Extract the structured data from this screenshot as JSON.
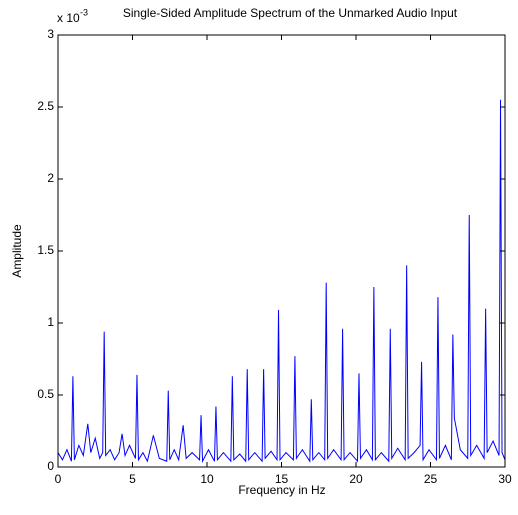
{
  "chart_data": {
    "type": "line",
    "title": "Single-Sided Amplitude Spectrum of the Unmarked Audio Input",
    "y_multiplier": "x 10",
    "y_multiplier_exponent": "-3",
    "xlabel": "Frequency in Hz",
    "ylabel": "Amplitude",
    "x": [
      0,
      0.3,
      0.6,
      0.9,
      1.0,
      1.1,
      1.4,
      1.7,
      2.0,
      2.2,
      2.5,
      2.8,
      3.0,
      3.1,
      3.2,
      3.5,
      3.8,
      4.1,
      4.3,
      4.5,
      4.8,
      5.2,
      5.3,
      5.4,
      5.7,
      6.0,
      6.4,
      6.8,
      7.3,
      7.4,
      7.5,
      7.8,
      8.1,
      8.4,
      8.6,
      9.0,
      9.5,
      9.6,
      9.7,
      10.1,
      10.5,
      10.6,
      10.7,
      11.1,
      11.6,
      11.7,
      11.8,
      12.2,
      12.6,
      12.7,
      12.8,
      13.2,
      13.7,
      13.8,
      13.9,
      14.3,
      14.7,
      14.8,
      14.9,
      15.3,
      15.8,
      15.9,
      16.0,
      16.4,
      16.9,
      17.0,
      17.1,
      17.5,
      17.9,
      18.0,
      18.1,
      18.5,
      19.0,
      19.1,
      19.2,
      19.6,
      20.1,
      20.2,
      20.3,
      20.7,
      21.1,
      21.2,
      21.3,
      21.7,
      22.2,
      22.3,
      22.4,
      22.8,
      23.3,
      23.4,
      23.5,
      23.9,
      24.3,
      24.4,
      24.5,
      24.9,
      25.4,
      25.5,
      25.6,
      26.0,
      26.4,
      26.5,
      26.6,
      27.0,
      27.5,
      27.6,
      27.7,
      28.1,
      28.6,
      28.7,
      28.8,
      29.2,
      29.6,
      29.7,
      29.8,
      30
    ],
    "series": [
      {
        "name": "Amplitude",
        "color": "#0000ff",
        "values": [
          0.1,
          0.05,
          0.12,
          0.04,
          0.63,
          0.05,
          0.15,
          0.08,
          0.3,
          0.1,
          0.2,
          0.06,
          0.1,
          0.94,
          0.08,
          0.12,
          0.05,
          0.1,
          0.23,
          0.08,
          0.15,
          0.06,
          0.64,
          0.05,
          0.1,
          0.04,
          0.22,
          0.06,
          0.04,
          0.53,
          0.05,
          0.12,
          0.05,
          0.29,
          0.06,
          0.1,
          0.05,
          0.36,
          0.04,
          0.12,
          0.04,
          0.42,
          0.05,
          0.1,
          0.04,
          0.63,
          0.05,
          0.09,
          0.04,
          0.68,
          0.05,
          0.1,
          0.04,
          0.68,
          0.06,
          0.11,
          0.05,
          1.09,
          0.05,
          0.1,
          0.05,
          0.77,
          0.06,
          0.12,
          0.04,
          0.47,
          0.05,
          0.1,
          0.05,
          1.28,
          0.06,
          0.12,
          0.05,
          0.96,
          0.05,
          0.1,
          0.04,
          0.65,
          0.06,
          0.12,
          0.05,
          1.25,
          0.05,
          0.1,
          0.04,
          0.96,
          0.06,
          0.13,
          0.05,
          1.4,
          0.06,
          0.1,
          0.15,
          0.73,
          0.05,
          0.12,
          0.05,
          1.18,
          0.06,
          0.15,
          0.05,
          0.92,
          0.34,
          0.12,
          0.06,
          1.75,
          0.08,
          0.15,
          0.06,
          1.1,
          0.1,
          0.18,
          0.08,
          2.55,
          0.1,
          0.05
        ]
      }
    ],
    "xlim": [
      0,
      30
    ],
    "ylim": [
      0,
      3
    ],
    "xticks": [
      0,
      5,
      10,
      15,
      20,
      25,
      30
    ],
    "yticks": [
      0,
      0.5,
      1,
      1.5,
      2,
      2.5,
      3
    ]
  }
}
